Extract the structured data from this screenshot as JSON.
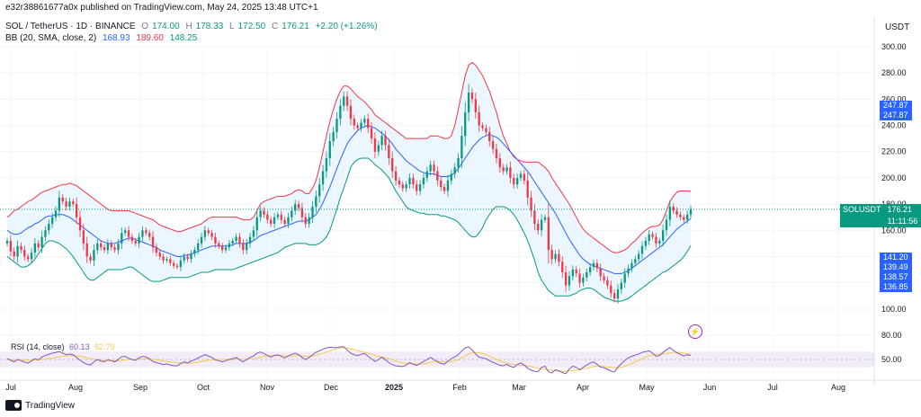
{
  "header": {
    "published": "e32r38861677a0x published on TradingView.com, May 24, 2025 13:48 UTC+1",
    "symbol": "SOL / TetherUS · 1D · BINANCE",
    "o_label": "O",
    "o_value": "174.00",
    "h_label": "H",
    "h_value": "178.33",
    "l_label": "L",
    "l_value": "172.50",
    "c_label": "C",
    "c_value": "176.21",
    "change": "+2.20 (+1.26%)",
    "bb_label": "BB (20, SMA, close, 2)",
    "bb_basis": "168.93",
    "bb_upper": "189.60",
    "bb_lower": "148.25"
  },
  "currency": "USDT",
  "rsi_legend": {
    "label": "RSI (14, close)",
    "value": "60.13",
    "ma": "62.79"
  },
  "price_tag": {
    "symbol": "SOLUSDT",
    "price": "176.21",
    "countdown": "11:11:56"
  },
  "axis_tags": {
    "top": [
      "247.87",
      "247.87"
    ],
    "bottom": [
      "141.20",
      "139.49",
      "138.57",
      "136.85"
    ]
  },
  "watermark": "TradingView",
  "colors": {
    "up": "#089981",
    "down": "#f23645",
    "bb_upper": "#f23645",
    "bb_lower": "#089981",
    "bb_basis": "#2962ff",
    "bb_fill": "#e3f2fd",
    "rsi": "#7e57c2",
    "rsi_ma": "#f7c948",
    "rsi_band": "#ede7f6"
  },
  "chart_data": {
    "type": "candlestick",
    "price_axis": {
      "ticks": [
        80,
        100,
        120,
        140,
        160,
        180,
        200,
        220,
        240,
        260,
        280,
        300
      ],
      "labels": [
        "80.00",
        "100.00",
        "120.00",
        "140.00",
        "160.00",
        "180.00",
        "200.00",
        "220.00",
        "240.00",
        "260.00",
        "280.00",
        "300.00"
      ]
    },
    "rsi_axis": {
      "ticks": [
        50
      ],
      "labels": [
        "50.00"
      ],
      "band": [
        30,
        70
      ]
    },
    "x_labels": [
      "Jul",
      "Aug",
      "Sep",
      "Oct",
      "Nov",
      "Dec",
      "2025",
      "Feb",
      "Mar",
      "Apr",
      "May",
      "Jun",
      "Jul",
      "Aug"
    ],
    "close": [
      152,
      144,
      140,
      148,
      145,
      140,
      138,
      143,
      150,
      147,
      155,
      160,
      165,
      170,
      175,
      185,
      182,
      178,
      182,
      180,
      170,
      160,
      150,
      140,
      137,
      145,
      150,
      147,
      145,
      150,
      147,
      145,
      150,
      158,
      160,
      155,
      152,
      150,
      155,
      160,
      158,
      155,
      147,
      143,
      140,
      137,
      138,
      135,
      133,
      132,
      137,
      140,
      138,
      142,
      145,
      150,
      155,
      160,
      158,
      155,
      150,
      148,
      145,
      147,
      150,
      152,
      155,
      150,
      145,
      150,
      155,
      160,
      170,
      175,
      172,
      168,
      165,
      170,
      172,
      168,
      165,
      170,
      175,
      180,
      177,
      170,
      165,
      170,
      178,
      186,
      195,
      205,
      215,
      228,
      235,
      245,
      255,
      262,
      255,
      245,
      240,
      238,
      242,
      245,
      238,
      230,
      220,
      225,
      232,
      225,
      215,
      205,
      198,
      195,
      192,
      195,
      200,
      195,
      190,
      195,
      200,
      205,
      210,
      205,
      198,
      193,
      190,
      198,
      203,
      208,
      215,
      232,
      250,
      265,
      260,
      250,
      240,
      238,
      235,
      228,
      222,
      215,
      208,
      205,
      208,
      200,
      195,
      200,
      203,
      198,
      185,
      175,
      165,
      160,
      168,
      170,
      145,
      138,
      142,
      136,
      128,
      118,
      125,
      130,
      127,
      120,
      124,
      128,
      132,
      135,
      131,
      125,
      122,
      118,
      112,
      108,
      115,
      120,
      127,
      131,
      135,
      138,
      142,
      148,
      152,
      157,
      155,
      150,
      152,
      160,
      168,
      178,
      175,
      172,
      170,
      168,
      172,
      176
    ],
    "bb_upper": [
      170,
      172,
      175,
      176,
      178,
      180,
      182,
      183,
      185,
      187,
      189,
      190,
      191,
      192,
      193,
      194,
      195,
      195,
      196,
      195,
      194,
      192,
      190,
      188,
      186,
      184,
      182,
      180,
      178,
      176,
      175,
      175,
      175,
      175,
      175,
      175,
      174,
      173,
      172,
      171,
      170,
      169,
      168,
      166,
      164,
      163,
      162,
      161,
      160,
      159,
      159,
      160,
      161,
      162,
      163,
      164,
      165,
      167,
      169,
      170,
      170,
      170,
      170,
      170,
      170,
      170,
      170,
      169,
      168,
      168,
      168,
      170,
      175,
      180,
      182,
      183,
      184,
      185,
      186,
      186,
      186,
      187,
      188,
      190,
      191,
      190,
      188,
      188,
      192,
      198,
      208,
      220,
      232,
      243,
      252,
      260,
      266,
      270,
      270,
      268,
      265,
      262,
      260,
      258,
      255,
      252,
      248,
      246,
      244,
      242,
      240,
      238,
      236,
      234,
      232,
      230,
      230,
      230,
      230,
      230,
      230,
      230,
      232,
      232,
      232,
      231,
      230,
      230,
      232,
      240,
      252,
      265,
      278,
      286,
      288,
      286,
      282,
      278,
      272,
      266,
      258,
      250,
      240,
      232,
      226,
      220,
      216,
      214,
      213,
      212,
      212,
      212,
      212,
      212,
      210,
      208,
      205,
      200,
      196,
      192,
      188,
      184,
      180,
      175,
      170,
      165,
      161,
      158,
      156,
      154,
      152,
      150,
      148,
      146,
      144,
      143,
      143,
      144,
      145,
      147,
      150,
      152,
      155,
      158,
      160,
      162,
      163,
      163,
      164,
      168,
      175,
      182,
      186,
      189,
      190,
      190,
      190,
      189.6
    ],
    "bb_basis": [
      160,
      158,
      157,
      157,
      158,
      160,
      162,
      163,
      165,
      166,
      168,
      170,
      171,
      171,
      172,
      172,
      172,
      171,
      170,
      168,
      166,
      164,
      162,
      160,
      158,
      156,
      154,
      152,
      151,
      150,
      150,
      150,
      151,
      152,
      153,
      154,
      154,
      153,
      152,
      151,
      150,
      149,
      148,
      147,
      145,
      144,
      143,
      142,
      141,
      140,
      140,
      141,
      141,
      142,
      143,
      144,
      145,
      146,
      147,
      148,
      148,
      148,
      148,
      148,
      148,
      149,
      150,
      150,
      150,
      150,
      151,
      152,
      154,
      156,
      157,
      158,
      159,
      160,
      161,
      162,
      163,
      164,
      165,
      166,
      167,
      167,
      167,
      168,
      170,
      172,
      176,
      181,
      187,
      193,
      200,
      207,
      214,
      220,
      226,
      230,
      233,
      236,
      238,
      239,
      240,
      239,
      238,
      236,
      234,
      232,
      229,
      226,
      222,
      219,
      216,
      213,
      211,
      209,
      207,
      205,
      204,
      203,
      203,
      203,
      202,
      201,
      201,
      201,
      202,
      204,
      207,
      211,
      215,
      219,
      223,
      226,
      229,
      231,
      232,
      233,
      232,
      231,
      229,
      226,
      223,
      220,
      217,
      214,
      211,
      208,
      205,
      201,
      197,
      193,
      189,
      185,
      181,
      177,
      173,
      168,
      163,
      158,
      153,
      149,
      145,
      141,
      138,
      136,
      134,
      133,
      132,
      131,
      130,
      129,
      128,
      127,
      127,
      127,
      128,
      129,
      131,
      133,
      135,
      137,
      139,
      141,
      143,
      145,
      147,
      149,
      152,
      155,
      158,
      161,
      163,
      165,
      167,
      168.93
    ],
    "bb_lower": [
      140,
      138,
      136,
      134,
      132,
      132,
      133,
      135,
      138,
      142,
      146,
      150,
      152,
      152,
      151,
      150,
      148,
      146,
      143,
      140,
      136,
      132,
      128,
      124,
      122,
      122,
      124,
      126,
      128,
      130,
      130,
      130,
      130,
      130,
      131,
      132,
      132,
      130,
      128,
      126,
      124,
      122,
      121,
      121,
      121,
      122,
      123,
      124,
      124,
      124,
      124,
      124,
      124,
      125,
      126,
      127,
      128,
      128,
      128,
      129,
      130,
      130,
      130,
      130,
      130,
      130,
      131,
      132,
      133,
      134,
      135,
      136,
      137,
      138,
      139,
      140,
      141,
      142,
      143,
      145,
      147,
      148,
      149,
      150,
      150,
      150,
      150,
      149,
      149,
      149,
      150,
      152,
      155,
      160,
      168,
      176,
      185,
      192,
      200,
      208,
      212,
      214,
      215,
      215,
      215,
      213,
      210,
      208,
      206,
      203,
      200,
      195,
      190,
      186,
      182,
      178,
      176,
      175,
      174,
      173,
      173,
      172,
      172,
      172,
      172,
      171,
      171,
      170,
      169,
      168,
      166,
      163,
      160,
      157,
      155,
      155,
      158,
      162,
      168,
      172,
      176,
      178,
      178,
      178,
      177,
      175,
      172,
      168,
      163,
      158,
      152,
      145,
      137,
      128,
      122,
      118,
      114,
      112,
      110,
      110,
      110,
      110,
      110,
      111,
      112,
      114,
      115,
      116,
      116,
      115,
      113,
      111,
      109,
      108,
      107,
      106,
      106,
      106,
      107,
      108,
      110,
      112,
      114,
      116,
      118,
      120,
      122,
      124,
      126,
      128,
      129,
      131,
      133,
      135,
      137,
      140,
      144,
      148.25
    ],
    "rsi": [
      52,
      48,
      44,
      50,
      47,
      43,
      41,
      46,
      52,
      49,
      56,
      60,
      63,
      66,
      68,
      70,
      66,
      62,
      64,
      62,
      55,
      48,
      42,
      38,
      36,
      44,
      50,
      46,
      44,
      50,
      47,
      44,
      50,
      57,
      58,
      53,
      50,
      48,
      54,
      58,
      56,
      52,
      45,
      42,
      40,
      37,
      39,
      36,
      34,
      34,
      40,
      44,
      41,
      46,
      49,
      54,
      58,
      62,
      59,
      55,
      49,
      47,
      44,
      47,
      50,
      52,
      55,
      49,
      44,
      50,
      55,
      59,
      66,
      69,
      65,
      60,
      56,
      60,
      62,
      58,
      54,
      59,
      63,
      66,
      62,
      55,
      50,
      55,
      62,
      68,
      72,
      76,
      79,
      81,
      80,
      80,
      82,
      82,
      74,
      66,
      62,
      60,
      63,
      65,
      58,
      52,
      45,
      50,
      56,
      49,
      42,
      37,
      34,
      33,
      32,
      36,
      42,
      38,
      35,
      40,
      45,
      50,
      55,
      50,
      44,
      40,
      38,
      46,
      52,
      57,
      62,
      72,
      79,
      82,
      74,
      64,
      56,
      54,
      52,
      47,
      43,
      39,
      35,
      34,
      38,
      33,
      30,
      37,
      41,
      36,
      28,
      23,
      20,
      19,
      30,
      33,
      19,
      16,
      24,
      21,
      17,
      14,
      26,
      33,
      30,
      24,
      30,
      36,
      41,
      44,
      38,
      31,
      29,
      25,
      21,
      18,
      31,
      39,
      48,
      54,
      58,
      61,
      64,
      68,
      70,
      72,
      66,
      58,
      60,
      68,
      74,
      80,
      73,
      67,
      63,
      59,
      62,
      60.13
    ],
    "rsi_ma": [
      50,
      50,
      49,
      49,
      48,
      48,
      48,
      48,
      49,
      49,
      50,
      51,
      52,
      53,
      55,
      57,
      58,
      59,
      60,
      60,
      59,
      58,
      56,
      54,
      52,
      50,
      49,
      48,
      47,
      47,
      47,
      47,
      47,
      48,
      49,
      50,
      50,
      50,
      51,
      51,
      51,
      51,
      50,
      49,
      48,
      46,
      45,
      44,
      43,
      42,
      41,
      41,
      41,
      41,
      42,
      43,
      45,
      47,
      48,
      49,
      50,
      50,
      50,
      50,
      50,
      50,
      51,
      51,
      50,
      50,
      51,
      52,
      54,
      56,
      58,
      59,
      60,
      60,
      60,
      60,
      59,
      59,
      59,
      60,
      60,
      59,
      58,
      58,
      59,
      61,
      63,
      66,
      69,
      72,
      75,
      77,
      79,
      80,
      79,
      77,
      75,
      72,
      70,
      68,
      66,
      63,
      60,
      58,
      56,
      54,
      52,
      49,
      46,
      43,
      41,
      40,
      40,
      39,
      38,
      38,
      39,
      41,
      43,
      45,
      46,
      45,
      44,
      44,
      45,
      47,
      50,
      54,
      59,
      64,
      67,
      68,
      67,
      65,
      62,
      58,
      54,
      50,
      46,
      43,
      41,
      39,
      37,
      36,
      35,
      35,
      34,
      32,
      30,
      28,
      26,
      25,
      24,
      22,
      21,
      21,
      20,
      20,
      21,
      22,
      23,
      24,
      26,
      28,
      30,
      32,
      33,
      33,
      32,
      31,
      30,
      29,
      29,
      30,
      33,
      36,
      40,
      44,
      48,
      52,
      56,
      60,
      62,
      63,
      63,
      64,
      65,
      67,
      68,
      68,
      67,
      66,
      64,
      62.79
    ]
  }
}
